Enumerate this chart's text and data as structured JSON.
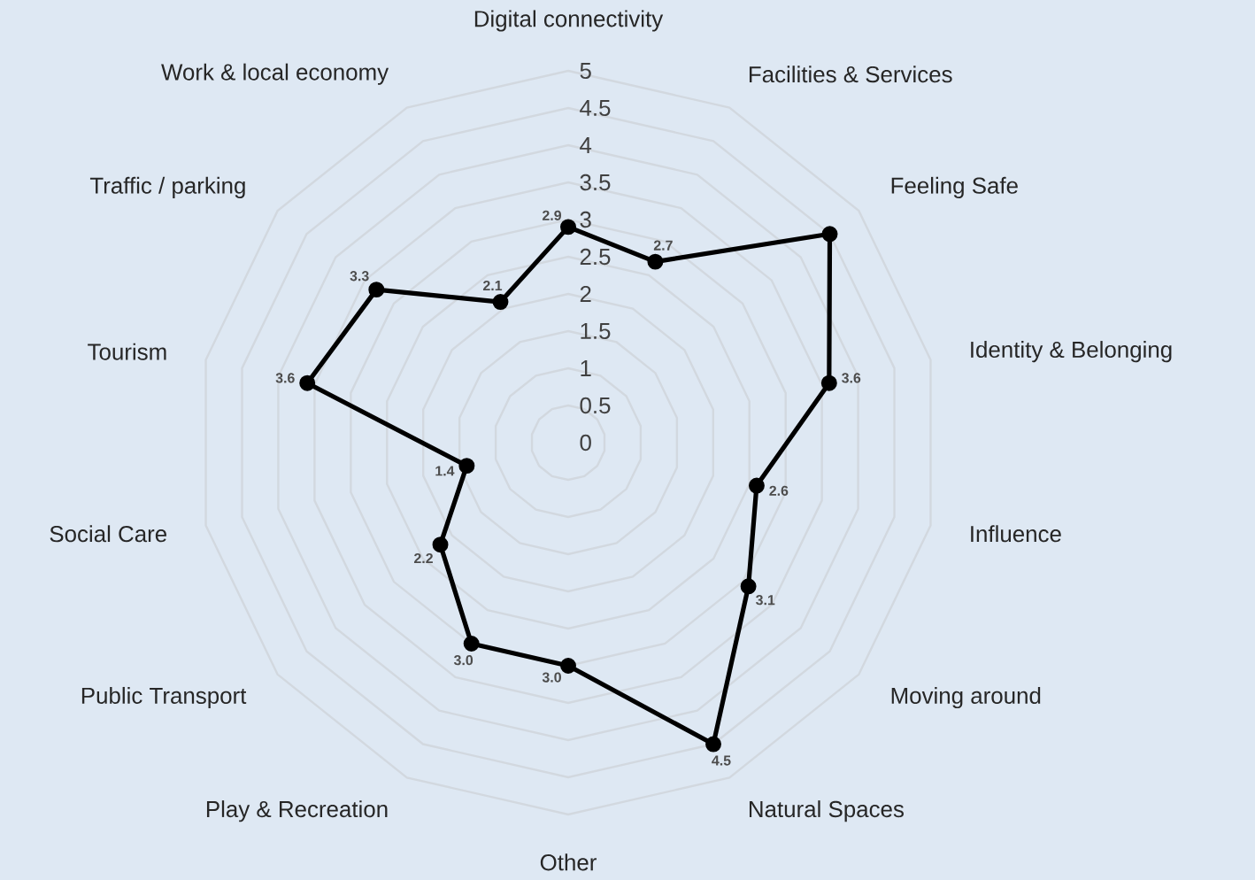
{
  "chart_data": {
    "type": "radar",
    "categories": [
      "Digital connectivity",
      "Facilities & Services",
      "Feeling Safe",
      "Identity & Belonging",
      "Influence",
      "Moving around",
      "Natural Spaces",
      "Other",
      "Play & Recreation",
      "Public Transport",
      "Social Care",
      "Tourism",
      "Traffic / parking",
      "Work & local economy"
    ],
    "series": [
      {
        "color": "#000000",
        "values": [
          2.9,
          2.7,
          4.5,
          3.6,
          2.6,
          3.1,
          4.5,
          3.0,
          3.0,
          2.2,
          1.4,
          3.6,
          3.3,
          2.1
        ],
        "value_labels": [
          "2.9",
          "2.7",
          null,
          "3.6",
          "2.6",
          "3.1",
          "4.5",
          "3.0",
          "3.0",
          "2.2",
          "1.4",
          "3.6",
          "3.3",
          "2.1"
        ]
      }
    ],
    "ylim": [
      0,
      5
    ],
    "yticks": [
      0,
      0.5,
      1,
      1.5,
      2,
      2.5,
      3,
      3.5,
      4,
      4.5,
      5
    ],
    "grid": true,
    "marker": "circle"
  }
}
